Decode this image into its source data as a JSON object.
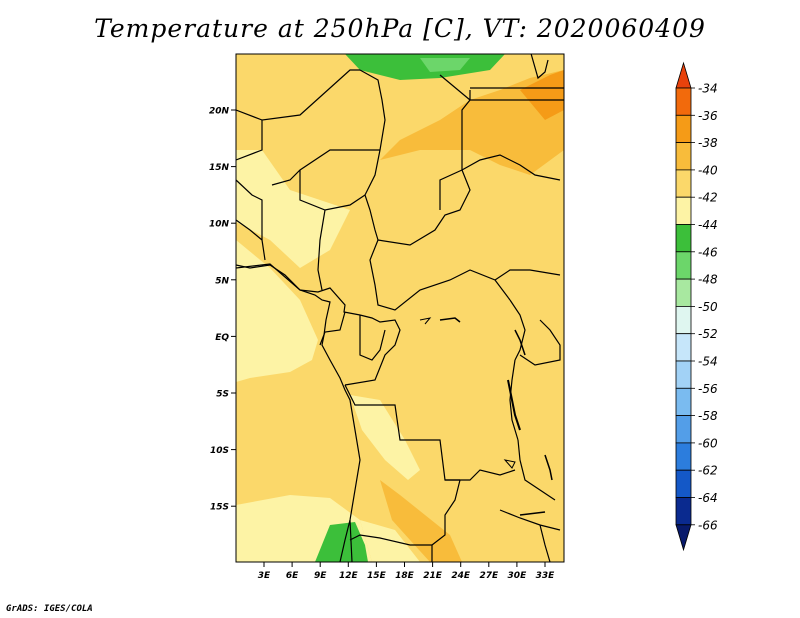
{
  "title": "Temperature at 250hPa [C], VT: 2020060409",
  "credit": "GrADS: IGES/COLA",
  "chart_data": {
    "type": "heatmap",
    "variable": "Temperature at 250hPa",
    "units": "C",
    "valid_time": "2020060409",
    "lon_labels": [
      "3E",
      "6E",
      "9E",
      "12E",
      "15E",
      "18E",
      "21E",
      "24E",
      "27E",
      "30E",
      "33E"
    ],
    "lat_labels": [
      "20N",
      "15N",
      "10N",
      "5N",
      "EQ",
      "5S",
      "10S",
      "15S"
    ],
    "lon_range": [
      0,
      35
    ],
    "lat_range": [
      -20,
      25
    ],
    "colorbar": {
      "levels": [
        "-34",
        "-36",
        "-38",
        "-40",
        "-42",
        "-44",
        "-46",
        "-48",
        "-50",
        "-52",
        "-54",
        "-56",
        "-58",
        "-60",
        "-62",
        "-64",
        "-66"
      ],
      "colors": [
        "#e8420c",
        "#f26a0c",
        "#f59b17",
        "#f8bc3b",
        "#fbd86a",
        "#fdf3a5",
        "#3cbf3a",
        "#6cd66a",
        "#a8e8a0",
        "#dff6f0",
        "#c6e6fa",
        "#a2d2f6",
        "#7abbf0",
        "#539ee8",
        "#2c7ddd",
        "#1458c7",
        "#0a2a8f",
        "#081a6b"
      ]
    }
  }
}
